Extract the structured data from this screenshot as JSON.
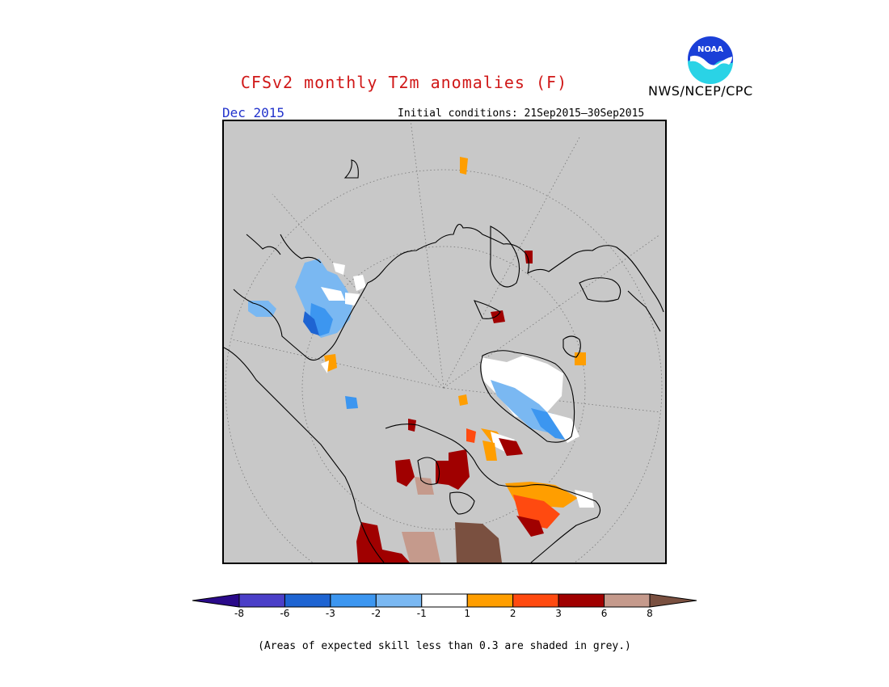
{
  "header": {
    "title": "CFSv2 monthly T2m anomalies (F)",
    "month": "Dec 2015",
    "initial_conditions": "Initial conditions: 21Sep2015—30Sep2015",
    "agency": "NWS/NCEP/CPC",
    "logo_text": "NOAA"
  },
  "map": {
    "projection": "north-polar-stereographic",
    "background_color": "#c8c8c8",
    "grid": true
  },
  "colorbar": {
    "ticks": [
      "-8",
      "-6",
      "-3",
      "-2",
      "-1",
      "1",
      "2",
      "3",
      "6",
      "8"
    ],
    "colors": [
      "#2a0a8a",
      "#4b3fc8",
      "#1e64d2",
      "#3c96f0",
      "#7ab8f2",
      "#ffffff",
      "#ff9e00",
      "#ff4a10",
      "#a00000",
      "#c59a8c",
      "#7a5040"
    ]
  },
  "footnote": "(Areas of expected skill less than 0.3 are shaded in grey.)"
}
